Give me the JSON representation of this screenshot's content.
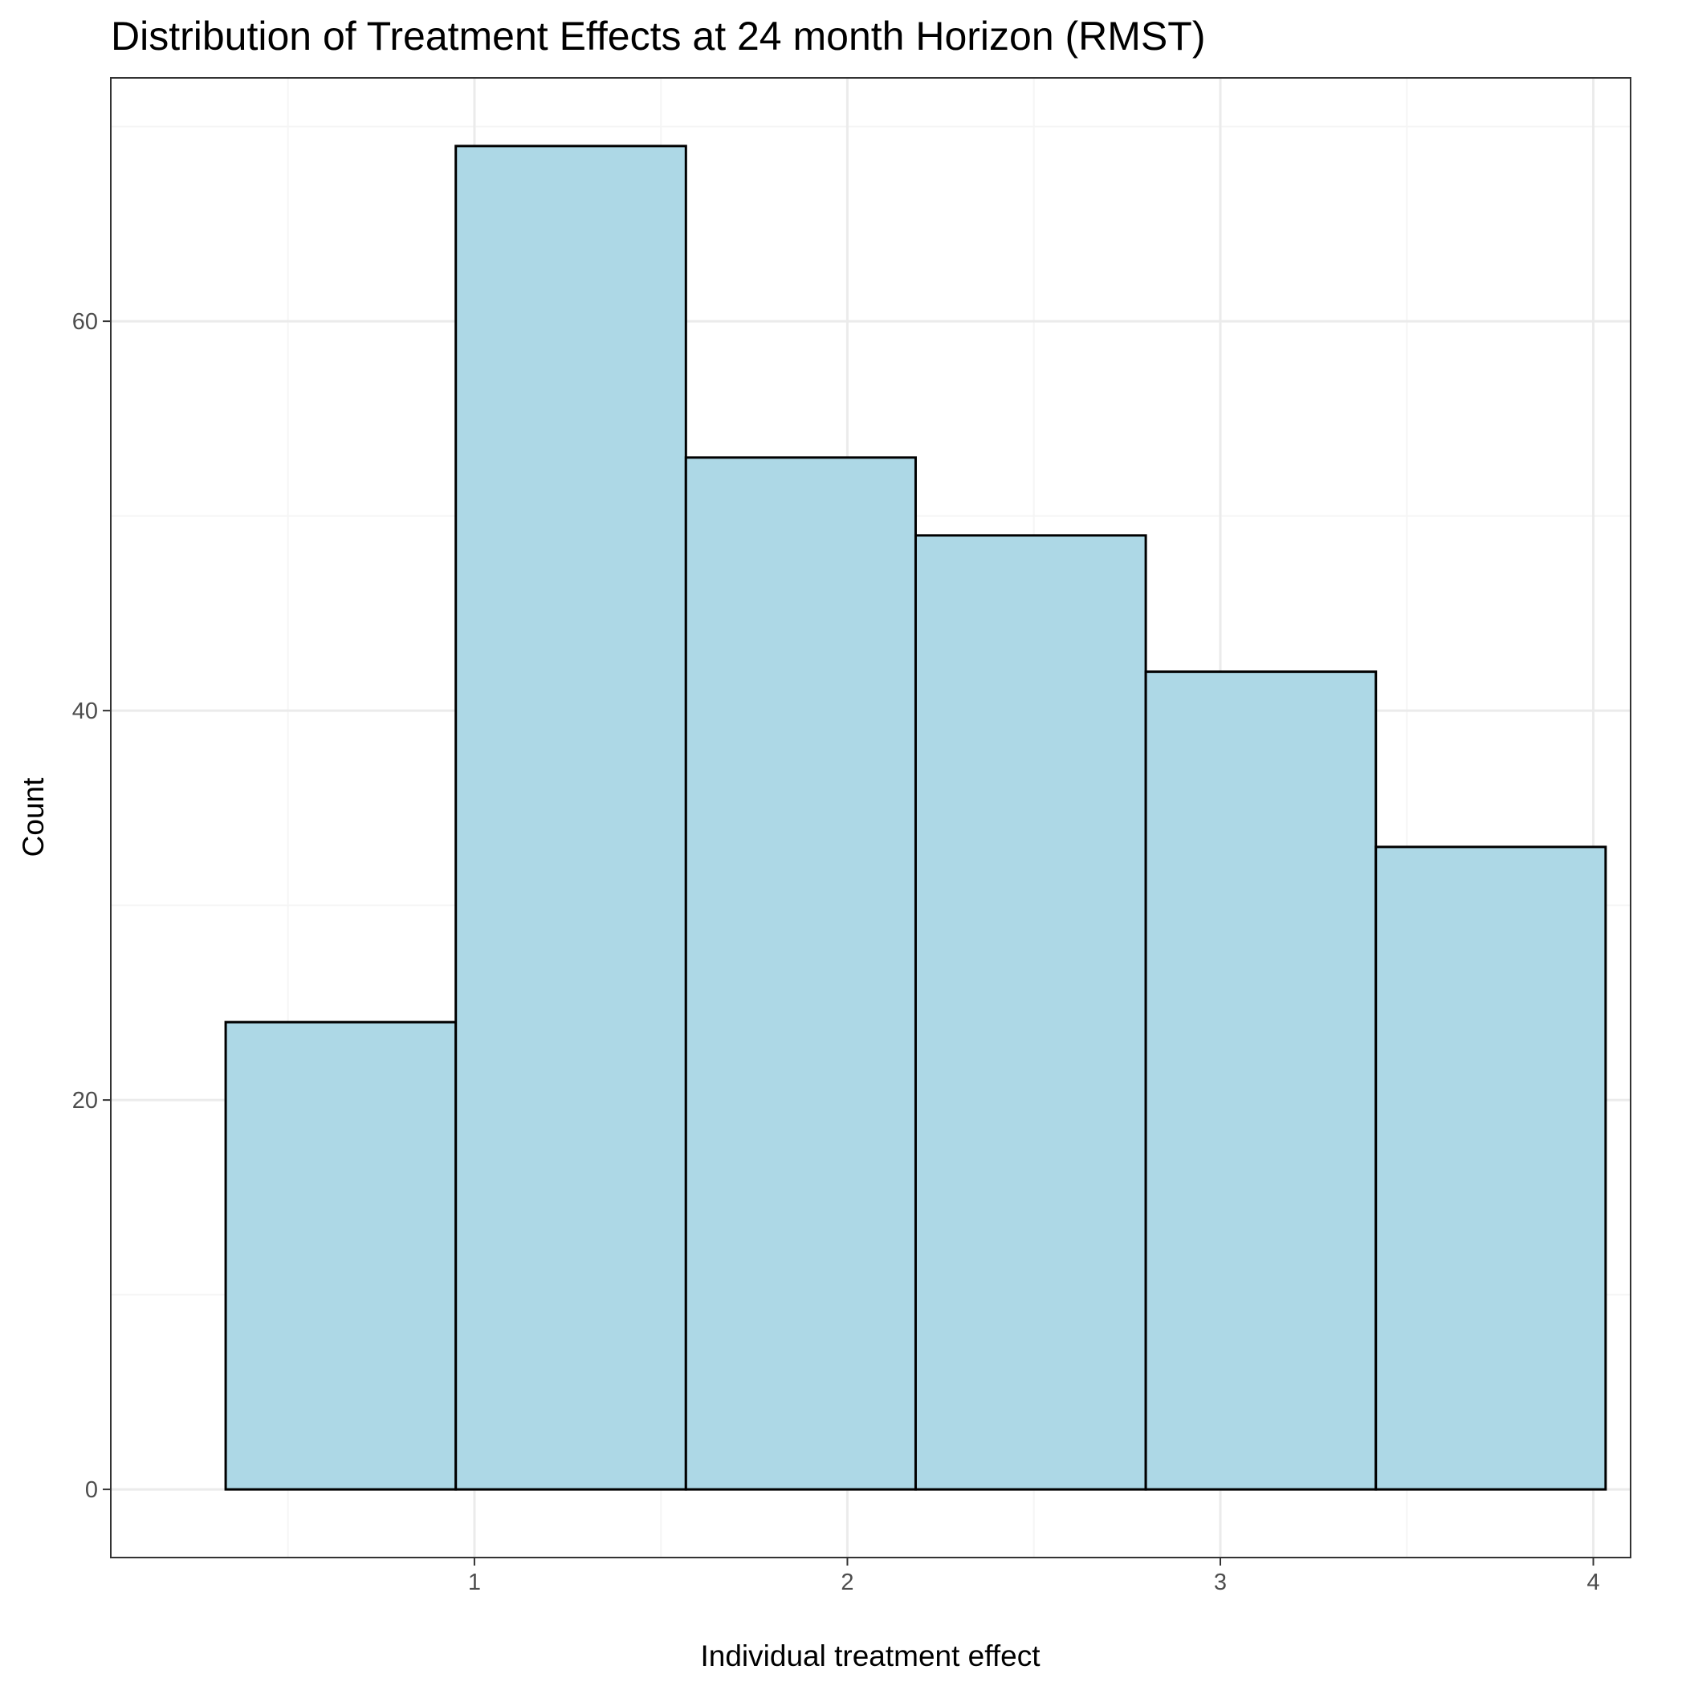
{
  "chart_data": {
    "type": "bar",
    "title": "Distribution of Treatment Effects at 24 month Horizon (RMST)",
    "xlabel": "Individual treatment effect",
    "ylabel": "Count",
    "bins": [
      {
        "x_start": 0.333,
        "x_end": 0.95,
        "count": 24
      },
      {
        "x_start": 0.95,
        "x_end": 1.567,
        "count": 69
      },
      {
        "x_start": 1.567,
        "x_end": 2.183,
        "count": 53
      },
      {
        "x_start": 2.183,
        "x_end": 2.8,
        "count": 49
      },
      {
        "x_start": 2.8,
        "x_end": 3.417,
        "count": 42
      },
      {
        "x_start": 3.417,
        "x_end": 4.033,
        "count": 33
      }
    ],
    "xlim": [
      0.025,
      4.1
    ],
    "ylim": [
      -3.5,
      72.5
    ],
    "x_major_ticks": [
      1,
      2,
      3,
      4
    ],
    "x_tick_labels": [
      "1",
      "2",
      "3",
      "4"
    ],
    "x_minor_ticks": [
      0.5,
      1.5,
      2.5,
      3.5
    ],
    "y_major_ticks": [
      0,
      20,
      40,
      60
    ],
    "y_tick_labels": [
      "0",
      "20",
      "40",
      "60"
    ],
    "y_minor_ticks": [
      10,
      30,
      50,
      70
    ],
    "grid": true,
    "legend": "none",
    "colors": {
      "bar_fill": "#add8e6",
      "bar_stroke": "#000000",
      "panel_border": "#333333",
      "grid_major": "#ebebeb",
      "grid_minor": "#f5f5f5",
      "tick_label": "#4d4d4d",
      "text": "#000000"
    }
  }
}
